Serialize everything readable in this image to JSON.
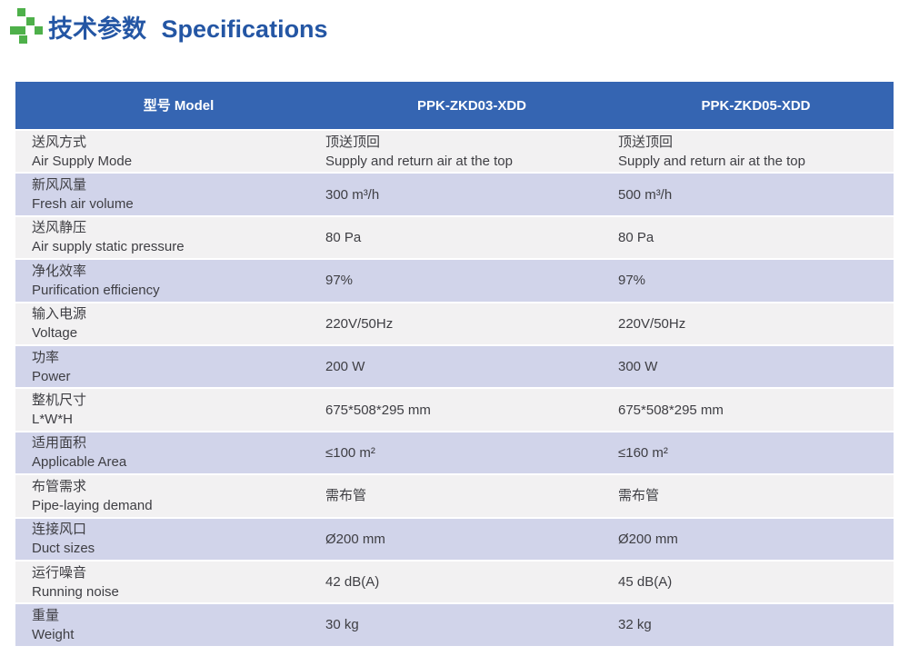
{
  "page": {
    "title_zh": "技术参数",
    "title_en": "Specifications",
    "title_color": "#2456a4",
    "icon_green": "#4eb04a"
  },
  "table": {
    "header": {
      "model_label": "型号 Model",
      "model_1": "PPK-ZKD03-XDD",
      "model_2": "PPK-ZKD05-XDD",
      "bg": "#3565b2",
      "text_color": "#ffffff"
    },
    "row_colors": {
      "light": "#f2f1f2",
      "lavender": "#d1d4ea"
    },
    "rows": [
      {
        "zh": "送风方式",
        "en": "Air Supply Mode",
        "v1": [
          "顶送顶回",
          "Supply and return air at the top"
        ],
        "v2": [
          "顶送顶回",
          "Supply and return air at the top"
        ]
      },
      {
        "zh": "新风风量",
        "en": "Fresh air volume",
        "v1": [
          "300 m³/h"
        ],
        "v2": [
          "500 m³/h"
        ]
      },
      {
        "zh": "送风静压",
        "en": "Air supply static pressure",
        "v1": [
          "80 Pa"
        ],
        "v2": [
          "80 Pa"
        ]
      },
      {
        "zh": "净化效率",
        "en": "Purification efficiency",
        "v1": [
          "97%"
        ],
        "v2": [
          "97%"
        ]
      },
      {
        "zh": "输入电源",
        "en": "Voltage",
        "v1": [
          "220V/50Hz"
        ],
        "v2": [
          "220V/50Hz"
        ]
      },
      {
        "zh": "功率",
        "en": "Power",
        "v1": [
          "200 W"
        ],
        "v2": [
          "300 W"
        ]
      },
      {
        "zh": "整机尺寸",
        "en": "L*W*H",
        "v1": [
          "675*508*295 mm"
        ],
        "v2": [
          "675*508*295 mm"
        ]
      },
      {
        "zh": "适用面积",
        "en": "Applicable Area",
        "v1": [
          "≤100 m²"
        ],
        "v2": [
          "≤160 m²"
        ]
      },
      {
        "zh": "布管需求",
        "en": "Pipe-laying demand",
        "v1": [
          "需布管"
        ],
        "v2": [
          "需布管"
        ]
      },
      {
        "zh": "连接风口",
        "en": "Duct sizes",
        "v1": [
          "Ø200 mm"
        ],
        "v2": [
          "Ø200 mm"
        ]
      },
      {
        "zh": "运行噪音",
        "en": "Running noise",
        "v1": [
          "42 dB(A)"
        ],
        "v2": [
          "45 dB(A)"
        ]
      },
      {
        "zh": "重量",
        "en": "Weight",
        "v1": [
          "30 kg"
        ],
        "v2": [
          "32 kg"
        ]
      }
    ]
  }
}
